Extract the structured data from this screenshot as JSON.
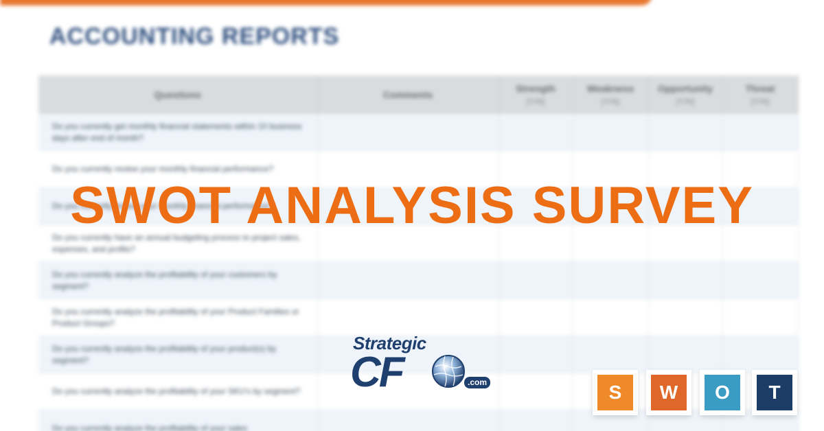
{
  "document": {
    "title": "ACCOUNTING REPORTS",
    "table": {
      "headers": [
        {
          "label": "Questions",
          "sub": ""
        },
        {
          "label": "Comments",
          "sub": ""
        },
        {
          "label": "Strength",
          "sub": "[Y/N]"
        },
        {
          "label": "Weakness",
          "sub": "[Y/N]"
        },
        {
          "label": "Opportunity",
          "sub": "[Y/N]"
        },
        {
          "label": "Threat",
          "sub": "[Y/N]"
        }
      ],
      "rows": [
        "Do you currently get monthly financial statements within 10 business days after end of month?",
        "Do you currently review your monthly financial performance?",
        "Do you currently review your monthly financial performance?",
        "Do you currently have an annual budgeting process to project sales, expenses, and profits?",
        "Do you currently analyze the profitability of your customers by segment?",
        "Do you currently analyze the profitability of your Product Families or Product Groups?",
        "Do you currently analyze the profitability of your product(s) by segment?",
        "Do you currently analyze the profitability of your SKU's by segment?",
        "Do you currently analyze the profitability of your sales"
      ]
    }
  },
  "headline": "SWOT ANALYSIS SURVEY",
  "logo": {
    "strategic": "Strategic",
    "cfo": "CF",
    "dotcom": ".com",
    "color": "#1f3f6e"
  },
  "swot_tiles": [
    {
      "letter": "S",
      "color": "#ef8a2a"
    },
    {
      "letter": "W",
      "color": "#e0672a"
    },
    {
      "letter": "O",
      "color": "#3a9cc2"
    },
    {
      "letter": "T",
      "color": "#1c3d66"
    }
  ],
  "colors": {
    "accent": "#ec6d14",
    "title_blue": "#2f4f7f"
  }
}
